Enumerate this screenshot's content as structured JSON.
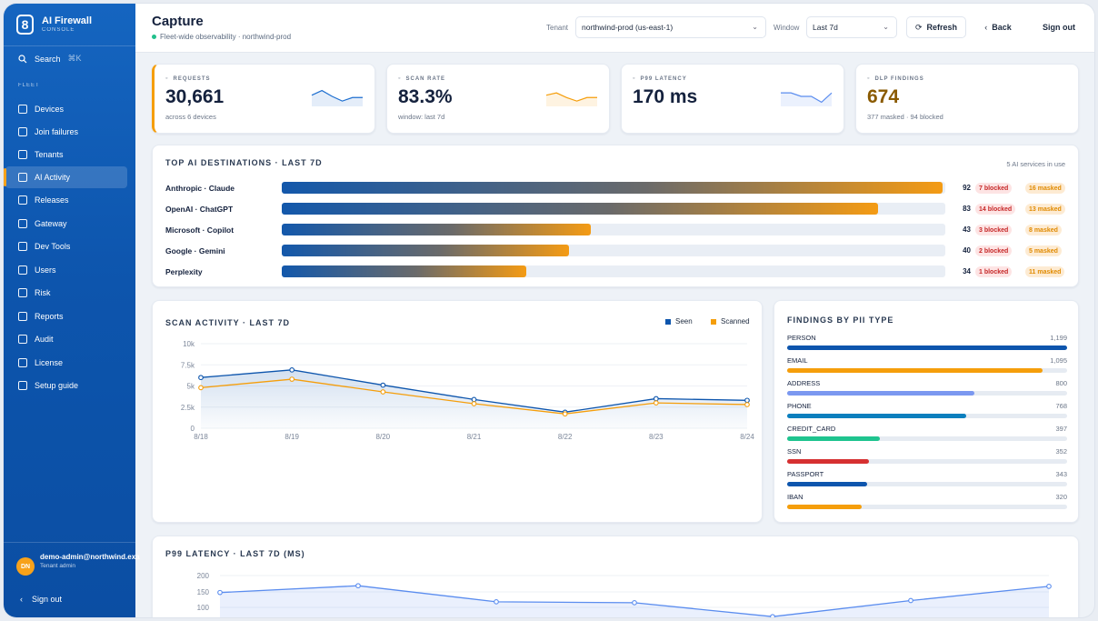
{
  "app": {
    "title": "AI Firewall",
    "subtitle": "CONSOLE"
  },
  "sidebar": {
    "search_label": "Search",
    "search_shortcut": "⌘K",
    "section_label": "FLEET",
    "items": [
      {
        "label": "Devices",
        "icon": "grid-icon"
      },
      {
        "label": "Join failures",
        "icon": "lock-icon"
      },
      {
        "label": "Tenants",
        "icon": "building-icon"
      },
      {
        "label": "AI Activity",
        "icon": "activity-icon",
        "active": true
      },
      {
        "label": "Releases",
        "icon": "layers-icon"
      },
      {
        "label": "Gateway",
        "icon": "server-icon"
      },
      {
        "label": "Dev Tools",
        "icon": "terminal-icon"
      },
      {
        "label": "Users",
        "icon": "users-icon"
      },
      {
        "label": "Risk",
        "icon": "shield-icon"
      },
      {
        "label": "Reports",
        "icon": "download-icon"
      },
      {
        "label": "Audit",
        "icon": "document-icon"
      },
      {
        "label": "License",
        "icon": "lock-icon"
      },
      {
        "label": "Setup guide",
        "icon": "home-icon"
      }
    ],
    "user": {
      "initials": "DN",
      "name": "demo-admin@northwind.example",
      "role": "Tenant admin"
    },
    "signout_label": "Sign out"
  },
  "header": {
    "title": "Capture",
    "subtitle": "Fleet-wide observability · northwind-prod",
    "tenant_label": "Tenant",
    "tenant_value": "northwind-prod (us-east-1)",
    "window_label": "Window",
    "window_value": "Last 7d",
    "refresh_label": "Refresh",
    "back_label": "Back",
    "signout_label": "Sign out"
  },
  "kpis": [
    {
      "label": "REQUESTS",
      "value": "30,661",
      "sub": "across 6 devices",
      "icon": "pulse-icon",
      "value_color": "#14213d",
      "spark_color": "#1e6fd0",
      "spark": [
        4,
        6,
        3.5,
        1.5,
        3,
        3
      ]
    },
    {
      "label": "SCAN RATE",
      "value": "83.3%",
      "sub": "window: last 7d",
      "icon": "trend-icon",
      "value_color": "#14213d",
      "spark_color": "#f59e0b",
      "spark": [
        4,
        5,
        3,
        1.5,
        3,
        3
      ]
    },
    {
      "label": "P99 LATENCY",
      "value": "170 ms",
      "sub": "",
      "icon": "clock-icon",
      "value_color": "#14213d",
      "spark_color": "#5b8def",
      "spark": [
        5,
        5,
        3.5,
        3.5,
        1,
        5
      ]
    },
    {
      "label": "DLP FINDINGS",
      "value": "674",
      "sub": "377 masked · 94 blocked",
      "icon": "check-icon",
      "value_color": "#8a5a00",
      "spark_color": "",
      "spark": []
    }
  ],
  "destinations": {
    "title": "TOP AI DESTINATIONS · LAST 7D",
    "summary": "5 AI services in use",
    "rows": [
      {
        "name": "Anthropic · Claude",
        "count": 92,
        "blocked": "7 blocked",
        "masked": "16 masked"
      },
      {
        "name": "OpenAI · ChatGPT",
        "count": 83,
        "blocked": "14 blocked",
        "masked": "13 masked"
      },
      {
        "name": "Microsoft · Copilot",
        "count": 43,
        "blocked": "3 blocked",
        "masked": "8 masked"
      },
      {
        "name": "Google · Gemini",
        "count": 40,
        "blocked": "2 blocked",
        "masked": "5 masked"
      },
      {
        "name": "Perplexity",
        "count": 34,
        "blocked": "1 blocked",
        "masked": "11 masked"
      }
    ]
  },
  "scan_activity": {
    "title": "SCAN ACTIVITY · LAST 7D",
    "legend_seen": "Seen",
    "legend_scanned": "Scanned"
  },
  "pii": {
    "title": "FINDINGS BY PII TYPE",
    "rows": [
      {
        "name": "PERSON",
        "value": "1,199",
        "color": "#0d55ad"
      },
      {
        "name": "EMAIL",
        "value": "1,095",
        "color": "#f59e0b"
      },
      {
        "name": "ADDRESS",
        "value": "800",
        "color": "#7b98f0"
      },
      {
        "name": "PHONE",
        "value": "768",
        "color": "#0b7fbe"
      },
      {
        "name": "CREDIT_CARD",
        "value": "397",
        "color": "#1fc48f"
      },
      {
        "name": "SSN",
        "value": "352",
        "color": "#d63031"
      },
      {
        "name": "PASSPORT",
        "value": "343",
        "color": "#0d55ad"
      },
      {
        "name": "IBAN",
        "value": "320",
        "color": "#f59e0b"
      }
    ]
  },
  "latency": {
    "title": "P99 LATENCY · LAST 7D (MS)"
  },
  "chart_data": [
    {
      "type": "line",
      "title": "SCAN ACTIVITY · LAST 7D",
      "x": [
        "8/18",
        "8/19",
        "8/20",
        "8/21",
        "8/22",
        "8/23",
        "8/24"
      ],
      "series": [
        {
          "name": "Seen",
          "color": "#0d55ad",
          "values": [
            6000,
            6900,
            5100,
            3400,
            1900,
            3500,
            3300
          ]
        },
        {
          "name": "Scanned",
          "color": "#f59e0b",
          "values": [
            4800,
            5800,
            4300,
            2900,
            1700,
            3000,
            2800
          ]
        }
      ],
      "yticks": [
        "0",
        "2.5k",
        "5k",
        "7.5k",
        "10k"
      ],
      "ylim": [
        0,
        10000
      ],
      "grid": true,
      "legend": "top-right"
    },
    {
      "type": "area",
      "title": "P99 LATENCY · LAST 7D (MS)",
      "series": [
        {
          "name": "",
          "color": "#5b8def",
          "values": [
            148,
            170,
            118,
            115,
            70,
            122,
            168
          ]
        }
      ],
      "yticks": [
        "100",
        "150",
        "200"
      ],
      "ylim": [
        70,
        205
      ],
      "grid": true
    }
  ]
}
